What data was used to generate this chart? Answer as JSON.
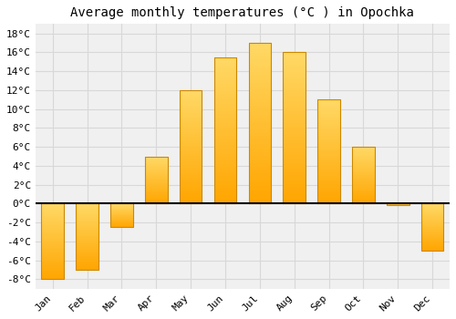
{
  "title": "Average monthly temperatures (°C ) in Opochka",
  "months": [
    "Jan",
    "Feb",
    "Mar",
    "Apr",
    "May",
    "Jun",
    "Jul",
    "Aug",
    "Sep",
    "Oct",
    "Nov",
    "Dec"
  ],
  "values": [
    -8,
    -7,
    -2.5,
    5,
    12,
    15.5,
    17,
    16,
    11,
    6,
    -0.2,
    -5
  ],
  "bar_color_top": "#FFD966",
  "bar_color_bottom": "#FFA500",
  "bar_edge_color": "#CC8800",
  "background_color": "#ffffff",
  "plot_bg_color": "#f0f0f0",
  "grid_color": "#d8d8d8",
  "ylim": [
    -9,
    19
  ],
  "yticks": [
    -8,
    -6,
    -4,
    -2,
    0,
    2,
    4,
    6,
    8,
    10,
    12,
    14,
    16,
    18
  ],
  "title_fontsize": 10,
  "tick_fontsize": 8
}
